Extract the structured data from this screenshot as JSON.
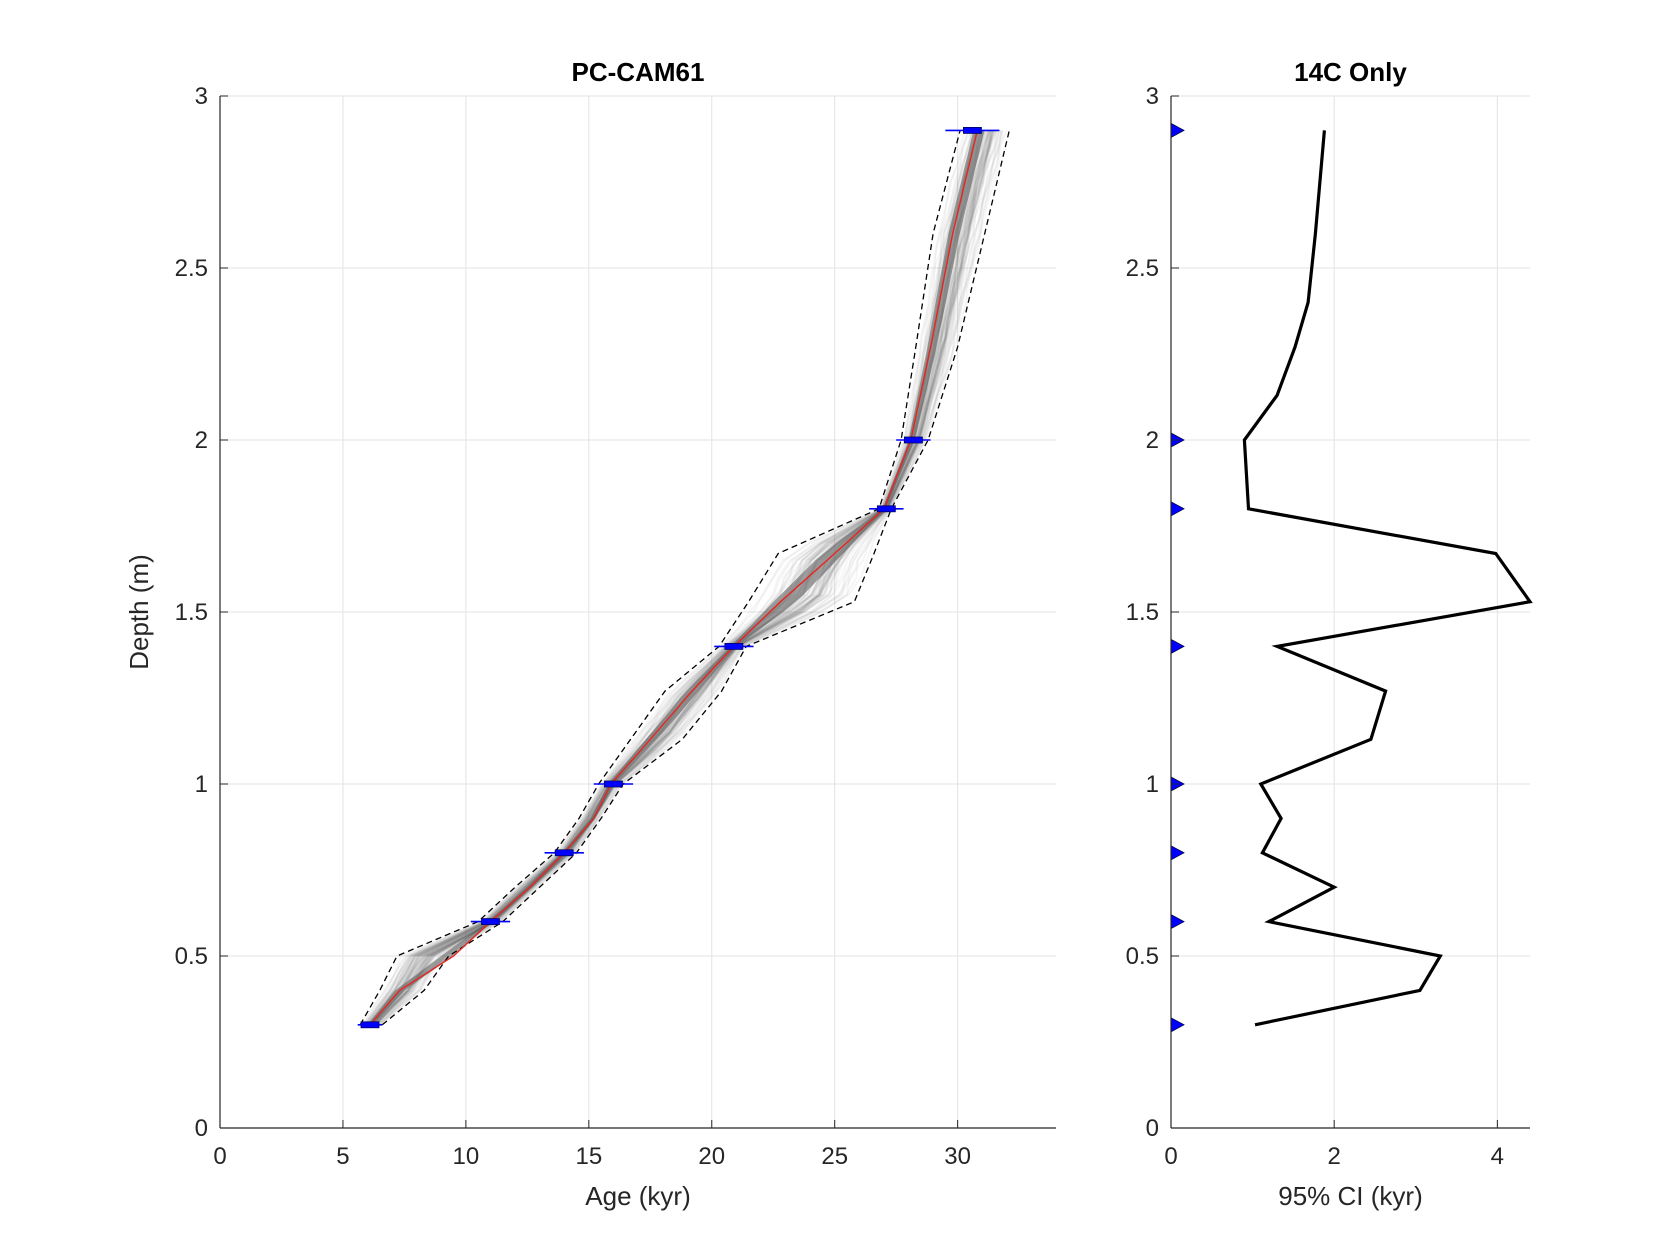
{
  "chart_data": [
    {
      "type": "line",
      "title": "PC-CAM61",
      "xlabel": "Age (kyr)",
      "ylabel": "Depth (m)",
      "xlim": [
        0,
        34
      ],
      "ylim": [
        0,
        3
      ],
      "xticks": [
        "0",
        "5",
        "10",
        "15",
        "20",
        "25",
        "30"
      ],
      "yticks": [
        "0",
        "0.5",
        "1",
        "1.5",
        "2",
        "2.5",
        "3"
      ],
      "grid": true,
      "colors": {
        "median": "#e8251f",
        "bounds": "#000000",
        "ensemble": "#6e6e6e",
        "dates": "#0000ff"
      },
      "series": [
        {
          "role": "median",
          "x": [
            6.1,
            7.3,
            9.5,
            11.0,
            12.6,
            14.0,
            15.2,
            15.9,
            17.5,
            19.2,
            20.9,
            22.8,
            25.0,
            27.0,
            28.1,
            28.9,
            29.8,
            30.8
          ],
          "y": [
            0.3,
            0.4,
            0.5,
            0.6,
            0.7,
            0.8,
            0.9,
            1.0,
            1.13,
            1.27,
            1.4,
            1.53,
            1.67,
            1.8,
            2.0,
            2.27,
            2.6,
            2.9
          ]
        },
        {
          "role": "upper-bound",
          "x": [
            5.7,
            6.5,
            7.2,
            10.5,
            12.0,
            13.6,
            14.6,
            15.4,
            16.7,
            18.1,
            20.3,
            21.5,
            22.7,
            26.8,
            27.7,
            28.3,
            29.0,
            30.1
          ],
          "y": [
            0.3,
            0.4,
            0.5,
            0.6,
            0.7,
            0.8,
            0.9,
            1.0,
            1.13,
            1.27,
            1.4,
            1.53,
            1.67,
            1.8,
            2.0,
            2.27,
            2.6,
            2.9
          ]
        },
        {
          "role": "lower-bound",
          "x": [
            6.6,
            8.3,
            9.3,
            11.5,
            13.0,
            14.5,
            15.5,
            16.4,
            18.8,
            20.4,
            21.4,
            25.8,
            26.6,
            27.3,
            28.8,
            30.0,
            31.1,
            32.1
          ],
          "y": [
            0.3,
            0.4,
            0.5,
            0.6,
            0.7,
            0.8,
            0.9,
            1.0,
            1.13,
            1.27,
            1.4,
            1.53,
            1.67,
            1.8,
            2.0,
            2.27,
            2.6,
            2.9
          ]
        }
      ],
      "dates": [
        {
          "depth": 0.3,
          "age": 6.1,
          "err": 0.5
        },
        {
          "depth": 0.6,
          "age": 11.0,
          "err": 0.8
        },
        {
          "depth": 0.8,
          "age": 14.0,
          "err": 0.8
        },
        {
          "depth": 1.0,
          "age": 16.0,
          "err": 0.8
        },
        {
          "depth": 1.4,
          "age": 20.9,
          "err": 0.8
        },
        {
          "depth": 1.8,
          "age": 27.1,
          "err": 0.7
        },
        {
          "depth": 2.0,
          "age": 28.2,
          "err": 0.7
        },
        {
          "depth": 2.9,
          "age": 30.6,
          "err": 1.1
        }
      ]
    },
    {
      "type": "line",
      "title": "14C Only",
      "xlabel": "95% CI (kyr)",
      "ylabel": "",
      "xlim": [
        0,
        4.4
      ],
      "ylim": [
        0,
        3
      ],
      "xticks": [
        "0",
        "2",
        "4"
      ],
      "yticks": [
        "0",
        "0.5",
        "1",
        "1.5",
        "2",
        "2.5",
        "3"
      ],
      "grid": true,
      "series": [
        {
          "role": "ci",
          "x": [
            1.03,
            3.05,
            3.3,
            1.2,
            2.0,
            1.12,
            1.35,
            1.1,
            2.45,
            2.63,
            1.3,
            4.4,
            3.98,
            0.95,
            0.9,
            1.3,
            1.52,
            1.68,
            1.77,
            1.88
          ],
          "y": [
            0.3,
            0.4,
            0.5,
            0.6,
            0.7,
            0.8,
            0.9,
            1.0,
            1.13,
            1.27,
            1.4,
            1.53,
            1.67,
            1.8,
            2.0,
            2.13,
            2.27,
            2.4,
            2.6,
            2.9
          ]
        }
      ],
      "markers": {
        "depths": [
          0.3,
          0.6,
          0.8,
          1.0,
          1.4,
          1.8,
          2.0,
          2.9
        ],
        "color": "#0000ff"
      }
    }
  ]
}
